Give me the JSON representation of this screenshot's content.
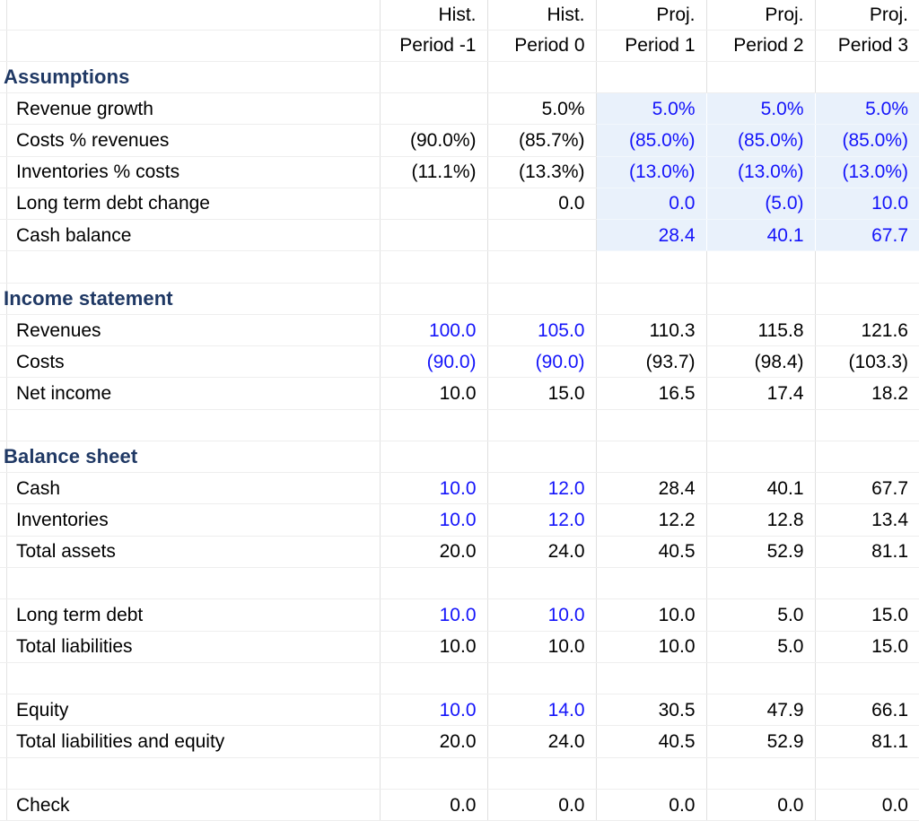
{
  "app": {
    "description": "Spreadsheet financial model with assumptions, income statement and balance sheet"
  },
  "colors": {
    "input_text_blue": "#1414FA",
    "projection_fill_blue": "#E9F1FB",
    "section_header_navy": "#1F3864",
    "gridline_vertical": "#E0E0E0",
    "gridline_horizontal": "#EEEEEE",
    "body_text": "#000000"
  },
  "col_keys": [
    "hist-period-minus-1",
    "hist-period-0",
    "proj-period-1",
    "proj-period-2",
    "proj-period-3"
  ],
  "rows": [
    {
      "kind": "header",
      "label": "",
      "cells": [
        {
          "v": "Hist."
        },
        {
          "v": "Hist."
        },
        {
          "v": "Proj."
        },
        {
          "v": "Proj."
        },
        {
          "v": "Proj."
        }
      ]
    },
    {
      "kind": "header",
      "label": "",
      "cells": [
        {
          "v": "Period -1"
        },
        {
          "v": "Period 0"
        },
        {
          "v": "Period 1"
        },
        {
          "v": "Period 2"
        },
        {
          "v": "Period 3"
        }
      ]
    },
    {
      "kind": "section",
      "label": "Assumptions",
      "cells": [
        {},
        {},
        {},
        {},
        {}
      ]
    },
    {
      "kind": "data",
      "label": "Revenue growth",
      "cells": [
        {},
        {
          "v": "5.0%"
        },
        {
          "v": "5.0%",
          "s": "input"
        },
        {
          "v": "5.0%",
          "s": "input"
        },
        {
          "v": "5.0%",
          "s": "input"
        }
      ]
    },
    {
      "kind": "data",
      "label": "Costs % revenues",
      "cells": [
        {
          "v": "(90.0%)"
        },
        {
          "v": "(85.7%)"
        },
        {
          "v": "(85.0%)",
          "s": "input"
        },
        {
          "v": "(85.0%)",
          "s": "input"
        },
        {
          "v": "(85.0%)",
          "s": "input"
        }
      ]
    },
    {
      "kind": "data",
      "label": "Inventories % costs",
      "cells": [
        {
          "v": "(11.1%)"
        },
        {
          "v": "(13.3%)"
        },
        {
          "v": "(13.0%)",
          "s": "input"
        },
        {
          "v": "(13.0%)",
          "s": "input"
        },
        {
          "v": "(13.0%)",
          "s": "input"
        }
      ]
    },
    {
      "kind": "data",
      "label": "Long term debt change",
      "cells": [
        {},
        {
          "v": "0.0"
        },
        {
          "v": "0.0",
          "s": "input"
        },
        {
          "v": "(5.0)",
          "s": "input"
        },
        {
          "v": "10.0",
          "s": "input"
        }
      ]
    },
    {
      "kind": "data",
      "label": "Cash balance",
      "cells": [
        {},
        {},
        {
          "v": "28.4",
          "s": "input"
        },
        {
          "v": "40.1",
          "s": "input"
        },
        {
          "v": "67.7",
          "s": "input"
        }
      ]
    },
    {
      "kind": "blank",
      "label": "",
      "cells": [
        {},
        {},
        {},
        {},
        {}
      ]
    },
    {
      "kind": "section",
      "label": "Income statement",
      "cells": [
        {},
        {},
        {},
        {},
        {}
      ]
    },
    {
      "kind": "data",
      "label": "Revenues",
      "cells": [
        {
          "v": "100.0",
          "s": "blue"
        },
        {
          "v": "105.0",
          "s": "blue"
        },
        {
          "v": "110.3"
        },
        {
          "v": "115.8"
        },
        {
          "v": "121.6"
        }
      ]
    },
    {
      "kind": "data",
      "label": "Costs",
      "cells": [
        {
          "v": "(90.0)",
          "s": "blue"
        },
        {
          "v": "(90.0)",
          "s": "blue"
        },
        {
          "v": "(93.7)"
        },
        {
          "v": "(98.4)"
        },
        {
          "v": "(103.3)"
        }
      ]
    },
    {
      "kind": "data",
      "label": "Net income",
      "cells": [
        {
          "v": "10.0"
        },
        {
          "v": "15.0"
        },
        {
          "v": "16.5"
        },
        {
          "v": "17.4"
        },
        {
          "v": "18.2"
        }
      ]
    },
    {
      "kind": "blank",
      "label": "",
      "cells": [
        {},
        {},
        {},
        {},
        {}
      ]
    },
    {
      "kind": "section",
      "label": "Balance sheet",
      "cells": [
        {},
        {},
        {},
        {},
        {}
      ]
    },
    {
      "kind": "data",
      "label": "Cash",
      "cells": [
        {
          "v": "10.0",
          "s": "blue"
        },
        {
          "v": "12.0",
          "s": "blue"
        },
        {
          "v": "28.4"
        },
        {
          "v": "40.1"
        },
        {
          "v": "67.7"
        }
      ]
    },
    {
      "kind": "data",
      "label": "Inventories",
      "cells": [
        {
          "v": "10.0",
          "s": "blue"
        },
        {
          "v": "12.0",
          "s": "blue"
        },
        {
          "v": "12.2"
        },
        {
          "v": "12.8"
        },
        {
          "v": "13.4"
        }
      ]
    },
    {
      "kind": "data",
      "label": "Total assets",
      "cells": [
        {
          "v": "20.0"
        },
        {
          "v": "24.0"
        },
        {
          "v": "40.5"
        },
        {
          "v": "52.9"
        },
        {
          "v": "81.1"
        }
      ]
    },
    {
      "kind": "blank",
      "label": "",
      "cells": [
        {},
        {},
        {},
        {},
        {}
      ]
    },
    {
      "kind": "data",
      "label": "Long term debt",
      "cells": [
        {
          "v": "10.0",
          "s": "blue"
        },
        {
          "v": "10.0",
          "s": "blue"
        },
        {
          "v": "10.0"
        },
        {
          "v": "5.0"
        },
        {
          "v": "15.0"
        }
      ]
    },
    {
      "kind": "data",
      "label": "Total liabilities",
      "cells": [
        {
          "v": "10.0"
        },
        {
          "v": "10.0"
        },
        {
          "v": "10.0"
        },
        {
          "v": "5.0"
        },
        {
          "v": "15.0"
        }
      ]
    },
    {
      "kind": "blank",
      "label": "",
      "cells": [
        {},
        {},
        {},
        {},
        {}
      ]
    },
    {
      "kind": "data",
      "label": "Equity",
      "cells": [
        {
          "v": "10.0",
          "s": "blue"
        },
        {
          "v": "14.0",
          "s": "blue"
        },
        {
          "v": "30.5"
        },
        {
          "v": "47.9"
        },
        {
          "v": "66.1"
        }
      ]
    },
    {
      "kind": "data",
      "label": "Total liabilities and equity",
      "cells": [
        {
          "v": "20.0"
        },
        {
          "v": "24.0"
        },
        {
          "v": "40.5"
        },
        {
          "v": "52.9"
        },
        {
          "v": "81.1"
        }
      ]
    },
    {
      "kind": "blank",
      "label": "",
      "cells": [
        {},
        {},
        {},
        {},
        {}
      ]
    },
    {
      "kind": "data",
      "label": "Check",
      "cells": [
        {
          "v": "0.0"
        },
        {
          "v": "0.0"
        },
        {
          "v": "0.0"
        },
        {
          "v": "0.0"
        },
        {
          "v": "0.0"
        }
      ]
    }
  ]
}
